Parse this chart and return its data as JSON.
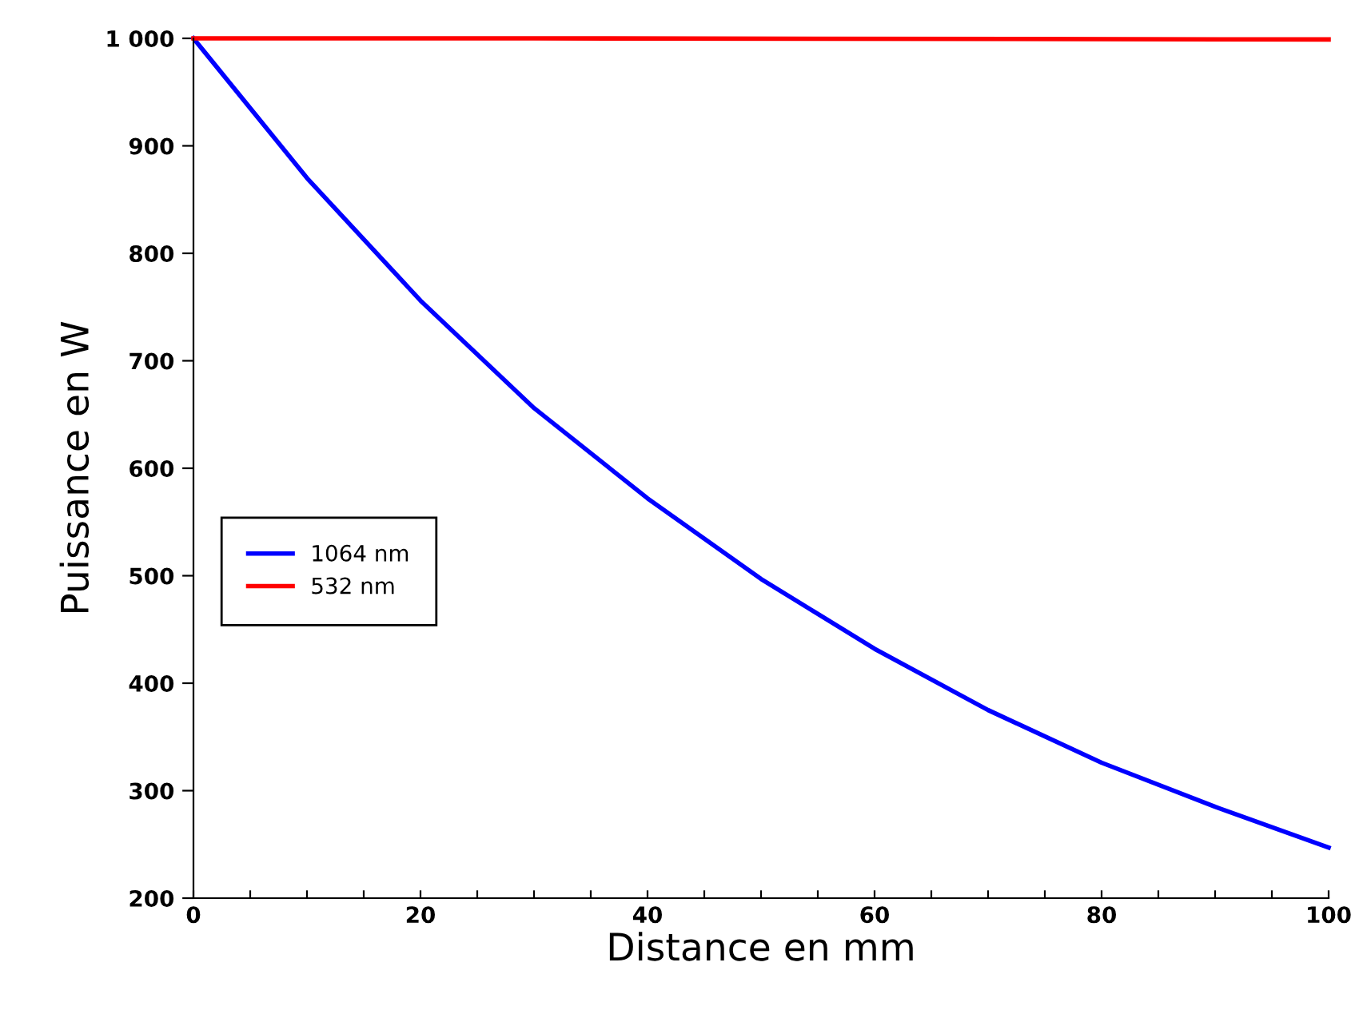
{
  "chart_data": {
    "type": "line",
    "xlabel": "Distance en mm",
    "ylabel": "Puissance en W",
    "x": [
      0,
      10,
      20,
      30,
      40,
      50,
      60,
      70,
      80,
      90,
      100
    ],
    "series": [
      {
        "name": "1064 nm",
        "color": "#0000ff",
        "values": [
          1000,
          870,
          756,
          656,
          572,
          497,
          432,
          375,
          326,
          285,
          247
        ]
      },
      {
        "name": "532 nm",
        "color": "#ff0000",
        "x": [
          0,
          30,
          100
        ],
        "values": [
          1000,
          1000,
          999
        ]
      }
    ],
    "xlim": [
      0,
      100
    ],
    "ylim": [
      200,
      1000
    ],
    "xticks": [
      0,
      {
        "value": 5,
        "label": null
      },
      {
        "value": 10,
        "label": null
      },
      {
        "value": 15,
        "label": null
      },
      20,
      {
        "value": 25,
        "label": null
      },
      {
        "value": 30,
        "label": null
      },
      {
        "value": 35,
        "label": null
      },
      40,
      {
        "value": 45,
        "label": null
      },
      {
        "value": 50,
        "label": null
      },
      {
        "value": 55,
        "label": null
      },
      60,
      {
        "value": 65,
        "label": null
      },
      {
        "value": 70,
        "label": null
      },
      {
        "value": 75,
        "label": null
      },
      80,
      {
        "value": 85,
        "label": null
      },
      {
        "value": 90,
        "label": null
      },
      {
        "value": 95,
        "label": null
      },
      100
    ],
    "yticks": [
      200,
      300,
      400,
      500,
      600,
      700,
      800,
      900,
      {
        "value": 1000,
        "label": "1 000"
      }
    ],
    "grid": false,
    "legend": "left",
    "marker": "none",
    "line_style": "solid"
  }
}
